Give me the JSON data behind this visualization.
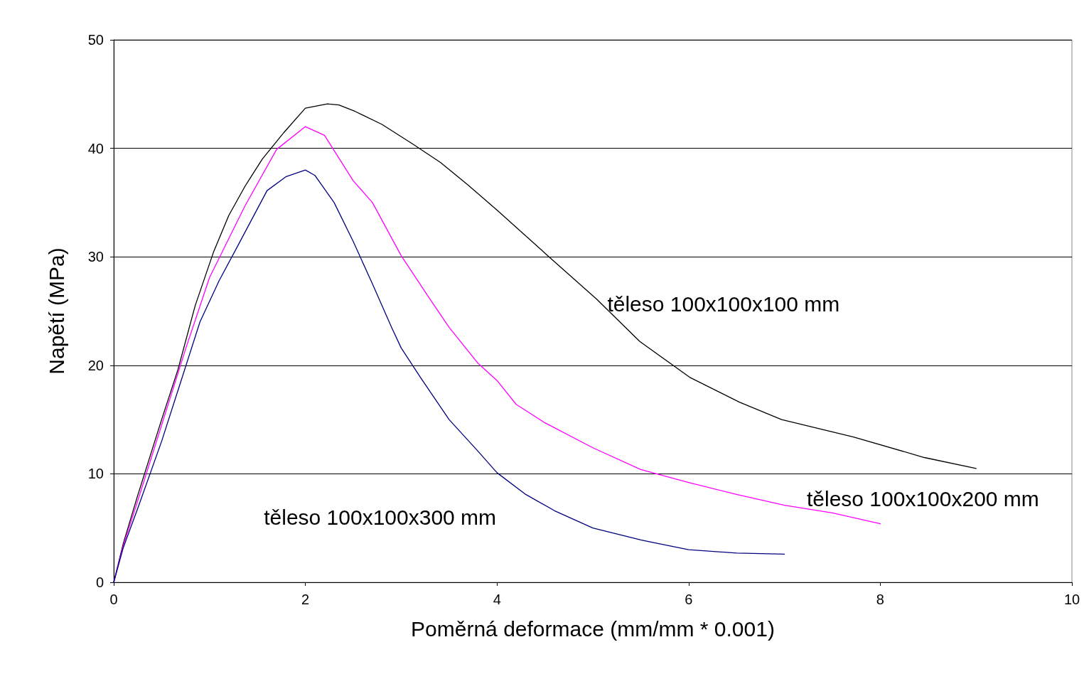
{
  "chart_data": {
    "type": "line",
    "xlabel": "Poměrná deformace (mm/mm * 0.001)",
    "ylabel": "Napětí (MPa)",
    "xlim": [
      0,
      10
    ],
    "xticks": [
      0,
      2,
      4,
      6,
      8,
      10
    ],
    "ylim": [
      0,
      50
    ],
    "yticks": [
      0,
      10,
      20,
      30,
      40,
      50
    ],
    "grid": "y",
    "marker": "none",
    "line_style": "solid",
    "series": [
      {
        "name": "těleso 100x100x100 mm",
        "color": "#000000",
        "x": [
          0,
          0.1,
          0.25,
          0.5,
          0.67,
          0.85,
          1.04,
          1.2,
          1.37,
          1.55,
          1.78,
          2,
          2.23,
          2.35,
          2.52,
          2.8,
          3.12,
          3.41,
          3.7,
          4,
          4.53,
          5.04,
          5.49,
          6.01,
          6.53,
          6.97,
          7.72,
          8.46,
          9
        ],
        "values": [
          0,
          3.6,
          8,
          15,
          19.6,
          25.5,
          30.4,
          33.8,
          36.5,
          39,
          41.5,
          43.7,
          44.1,
          44,
          43.4,
          42.2,
          40.4,
          38.7,
          36.6,
          34.3,
          30.1,
          26.1,
          22.2,
          18.9,
          16.6,
          15,
          13.4,
          11.5,
          10.5
        ]
      },
      {
        "name": "těleso 100x100x200 mm",
        "color": "#ff00ff",
        "x": [
          0,
          0.1,
          0.25,
          0.5,
          0.75,
          1,
          1.37,
          1.7,
          2,
          2.2,
          2.5,
          2.7,
          3,
          3.3,
          3.5,
          3.8,
          4,
          4.2,
          4.5,
          5,
          5.5,
          6,
          6.5,
          7,
          7.5,
          8
        ],
        "values": [
          0,
          3.4,
          7.5,
          14.5,
          21.5,
          28.1,
          34.7,
          39.9,
          42,
          41.2,
          37,
          35,
          30.1,
          26.1,
          23.5,
          20.2,
          18.6,
          16.4,
          14.7,
          12.4,
          10.4,
          9.2,
          8.1,
          7.1,
          6.4,
          5.4
        ]
      },
      {
        "name": "těleso 100x100x300 mm",
        "color": "#000080",
        "x": [
          0,
          0.1,
          0.25,
          0.5,
          0.7,
          0.9,
          1.1,
          1.3,
          1.6,
          1.8,
          2,
          2.1,
          2.3,
          2.5,
          2.7,
          2.9,
          3,
          3.2,
          3.5,
          3.8,
          4,
          4.3,
          4.6,
          5,
          5.5,
          6,
          6.5,
          7
        ],
        "values": [
          0,
          3.2,
          6.8,
          13,
          18.5,
          24,
          27.8,
          31.1,
          36.1,
          37.4,
          38,
          37.5,
          35,
          31.4,
          27.5,
          23.5,
          21.6,
          18.9,
          15,
          12.1,
          10.1,
          8.1,
          6.6,
          5,
          3.9,
          3,
          2.7,
          2.6
        ]
      }
    ]
  }
}
